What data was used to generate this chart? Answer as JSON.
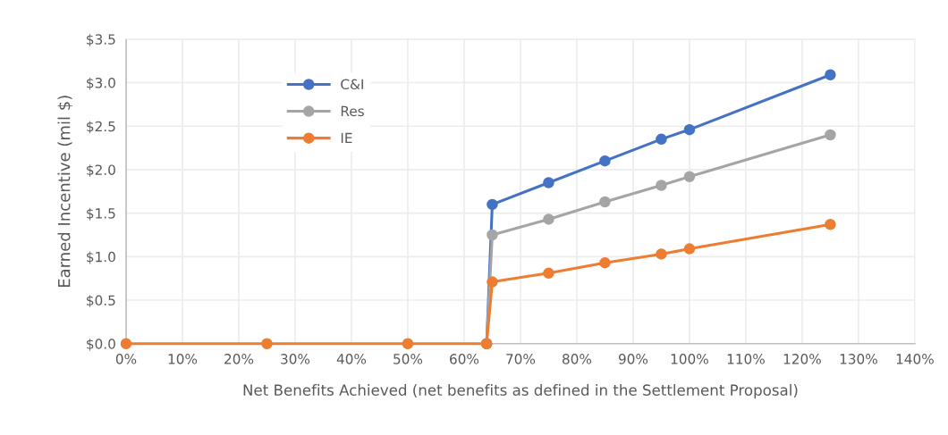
{
  "chart_data": {
    "type": "line",
    "xlabel": "Net Benefits Achieved (net benefits as defined in the Settlement Proposal)",
    "ylabel": "Earned Incentive (mil $)",
    "x": [
      0,
      25,
      50,
      64,
      65,
      75,
      85,
      95,
      100,
      125
    ],
    "series": [
      {
        "name": "C&I",
        "color": "#4472c4",
        "values": [
          null,
          null,
          null,
          0,
          1.6,
          1.85,
          2.1,
          2.35,
          2.46,
          3.09
        ]
      },
      {
        "name": "Res",
        "color": "#a5a5a5",
        "values": [
          null,
          null,
          null,
          0,
          1.25,
          1.43,
          1.63,
          1.82,
          1.92,
          2.4
        ]
      },
      {
        "name": "IE",
        "color": "#ed7d31",
        "values": [
          0,
          0,
          0,
          0,
          0.71,
          0.81,
          0.93,
          1.03,
          1.09,
          1.37
        ]
      }
    ],
    "xlim": [
      0,
      140
    ],
    "xticks": [
      {
        "value": 0,
        "label": "0%"
      },
      {
        "value": 10,
        "label": "10%"
      },
      {
        "value": 20,
        "label": "20%"
      },
      {
        "value": 30,
        "label": "30%"
      },
      {
        "value": 40,
        "label": "40%"
      },
      {
        "value": 50,
        "label": "50%"
      },
      {
        "value": 60,
        "label": "60%"
      },
      {
        "value": 70,
        "label": "70%"
      },
      {
        "value": 80,
        "label": "80%"
      },
      {
        "value": 90,
        "label": "90%"
      },
      {
        "value": 100,
        "label": "100%"
      },
      {
        "value": 110,
        "label": "110%"
      },
      {
        "value": 120,
        "label": "120%"
      },
      {
        "value": 130,
        "label": "130%"
      },
      {
        "value": 140,
        "label": "140%"
      }
    ],
    "ylim": [
      0,
      3.5
    ],
    "yticks": [
      {
        "value": 0,
        "label": "$0.0"
      },
      {
        "value": 0.5,
        "label": "$0.5"
      },
      {
        "value": 1,
        "label": "$1.0"
      },
      {
        "value": 1.5,
        "label": "$1.5"
      },
      {
        "value": 2,
        "label": "$2.0"
      },
      {
        "value": 2.5,
        "label": "$2.5"
      },
      {
        "value": 3,
        "label": "$3.0"
      },
      {
        "value": 3.5,
        "label": "$3.5"
      }
    ],
    "grid": true,
    "legend": "top left",
    "marker": "circle",
    "line_style": "solid"
  }
}
